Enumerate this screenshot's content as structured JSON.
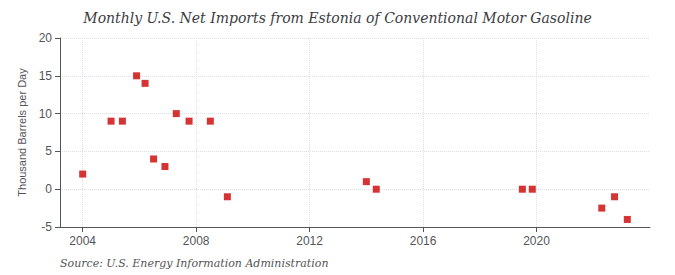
{
  "chart_data": {
    "type": "scatter",
    "title": "Monthly U.S. Net Imports from Estonia of Conventional Motor Gasoline",
    "ylabel": "Thousand Barrels per Day",
    "annotation": "Source: U.S. Energy Information Administration",
    "x": [
      2004.0,
      2005.0,
      2005.4,
      2005.9,
      2006.2,
      2006.5,
      2006.9,
      2007.3,
      2007.75,
      2008.5,
      2009.1,
      2014.0,
      2014.35,
      2019.5,
      2019.85,
      2022.3,
      2022.75,
      2023.2
    ],
    "values": [
      2.0,
      9.0,
      9.0,
      15.0,
      14.0,
      4.0,
      3.0,
      10.0,
      9.0,
      9.0,
      -1.0,
      1.0,
      0.0,
      0.0,
      0.0,
      -2.5,
      -1.0,
      -4.0
    ],
    "color": "#cc0000",
    "marker": "square",
    "xlim": [
      2003.2,
      2024.0
    ],
    "ylim": [
      -5,
      20
    ],
    "xticks": [
      2004,
      2008,
      2012,
      2016,
      2020
    ],
    "yticks": [
      -5,
      0,
      5,
      10,
      15,
      20
    ],
    "grid": true
  }
}
